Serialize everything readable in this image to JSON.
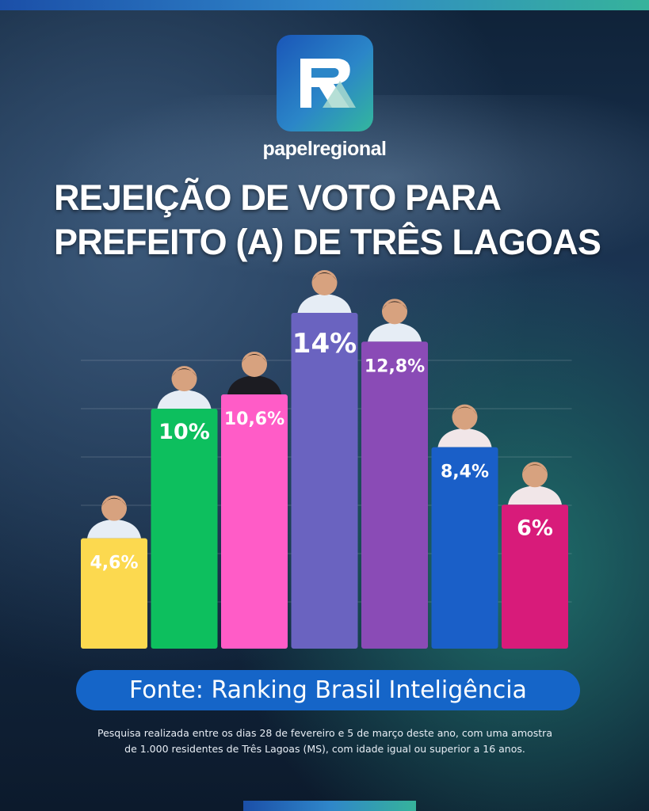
{
  "brand": "papelregional",
  "title_line1": "REJEIÇÃO DE VOTO PARA",
  "title_line2": "PREFEITO (A)  DE TRÊS LAGOAS",
  "source": "Fonte: Ranking Brasil Inteligência",
  "note_line1": "Pesquisa realizada entre os dias 28 de fevereiro e 5 de março deste ano, com uma amostra",
  "note_line2": "de 1.000 residentes de Três Lagoas (MS), com idade igual ou superior a 16 anos.",
  "chart_data": {
    "type": "bar",
    "title": "REJEIÇÃO DE VOTO PARA PREFEITO (A)  DE TRÊS LAGOAS",
    "categories": [
      "",
      "",
      "",
      "",
      "",
      "",
      ""
    ],
    "values": [
      4.6,
      10,
      10.6,
      14,
      12.8,
      8.4,
      6
    ],
    "labels": [
      "4,6%",
      "10%",
      "10,6%",
      "14%",
      "12,8%",
      "8,4%",
      "6%"
    ],
    "colors": [
      "#fcd94f",
      "#0dbf5e",
      "#ff5cc7",
      "#6a63c0",
      "#8a4bb6",
      "#1a5fc8",
      "#d81b7a"
    ],
    "ylim": [
      0,
      14
    ],
    "grid": true,
    "legend": "none"
  }
}
